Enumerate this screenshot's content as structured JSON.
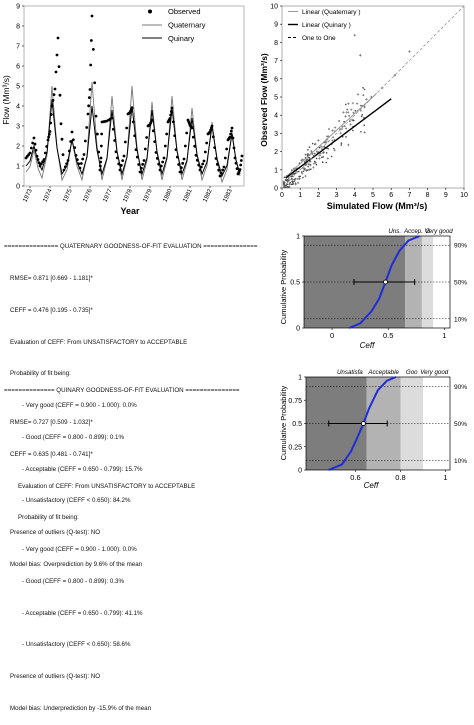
{
  "colors": {
    "observed": "#000000",
    "quaternary": "#777777",
    "quinary": "#000000",
    "cdf_curve": "#1f2dd8",
    "zone_dark": "#7d7d7d",
    "zone_mid": "#b3b3b3",
    "zone_light": "#dcdcdc",
    "zone_white": "#ffffff"
  },
  "chart_data": [
    {
      "type": "line",
      "id": "timeseries",
      "xlabel": "Year",
      "ylabel": "Flow (Mm³/s)",
      "xlim": [
        1972.7,
        1983.7
      ],
      "ylim": [
        0,
        9
      ],
      "x_ticks": [
        "1973",
        "1974",
        "1975",
        "1976",
        "1977",
        "1978",
        "1979",
        "1980",
        "1981",
        "1982",
        "1983"
      ],
      "y_ticks": [
        "0",
        "1",
        "2",
        "3",
        "4",
        "5",
        "6",
        "7",
        "8",
        "9"
      ],
      "legend_position": "top-right",
      "series": [
        {
          "name": "Observed",
          "style": "points",
          "peaks": [
            [
              1973.2,
              2.4
            ],
            [
              1973.9,
              2.3
            ],
            [
              1974.1,
              4.0
            ],
            [
              1974.4,
              7.4
            ],
            [
              1975.1,
              2.7
            ],
            [
              1975.9,
              3.6
            ],
            [
              1976.1,
              8.5
            ],
            [
              1976.6,
              3.2
            ],
            [
              1977.1,
              3.4
            ],
            [
              1977.9,
              3.6
            ],
            [
              1978.1,
              3.9
            ],
            [
              1978.9,
              3.0
            ],
            [
              1979.1,
              3.3
            ],
            [
              1979.9,
              3.2
            ],
            [
              1980.1,
              3.9
            ],
            [
              1980.9,
              3.3
            ],
            [
              1981.1,
              2.9
            ],
            [
              1981.9,
              2.6
            ],
            [
              1982.1,
              3.0
            ],
            [
              1982.9,
              2.3
            ],
            [
              1983.1,
              2.9
            ],
            [
              1983.6,
              1.5
            ]
          ],
          "troughs": [
            [
              1972.8,
              1.4
            ],
            [
              1973.5,
              1.0
            ],
            [
              1974.7,
              0.8
            ],
            [
              1975.5,
              0.9
            ],
            [
              1976.5,
              0.8
            ],
            [
              1977.5,
              0.8
            ],
            [
              1978.5,
              0.7
            ],
            [
              1979.5,
              0.8
            ],
            [
              1980.5,
              0.7
            ],
            [
              1981.5,
              0.8
            ],
            [
              1982.5,
              0.5
            ],
            [
              1983.4,
              0.6
            ]
          ]
        },
        {
          "name": "Quaternary",
          "style": "line",
          "peaks": [
            [
              1973.2,
              1.8
            ],
            [
              1974.1,
              5.0
            ],
            [
              1975.1,
              2.3
            ],
            [
              1976.1,
              5.2
            ],
            [
              1977.1,
              4.5
            ],
            [
              1978.1,
              5.0
            ],
            [
              1979.1,
              4.2
            ],
            [
              1980.1,
              4.5
            ],
            [
              1981.1,
              3.9
            ],
            [
              1982.1,
              3.2
            ],
            [
              1983.1,
              2.7
            ]
          ],
          "troughs": [
            [
              1972.8,
              0.7
            ],
            [
              1973.6,
              0.4
            ],
            [
              1974.6,
              0.3
            ],
            [
              1975.6,
              0.3
            ],
            [
              1976.6,
              0.3
            ],
            [
              1977.6,
              0.3
            ],
            [
              1978.6,
              0.3
            ],
            [
              1979.6,
              0.3
            ],
            [
              1980.6,
              0.3
            ],
            [
              1981.6,
              0.3
            ],
            [
              1982.6,
              0.2
            ],
            [
              1983.5,
              0.5
            ]
          ]
        },
        {
          "name": "Quinary",
          "style": "line",
          "peaks": [
            [
              1973.2,
              2.0
            ],
            [
              1974.1,
              4.3
            ],
            [
              1975.1,
              2.3
            ],
            [
              1976.1,
              4.0
            ],
            [
              1977.1,
              3.8
            ],
            [
              1978.1,
              4.0
            ],
            [
              1979.1,
              3.8
            ],
            [
              1980.1,
              3.9
            ],
            [
              1981.1,
              3.4
            ],
            [
              1982.1,
              3.0
            ],
            [
              1983.1,
              2.6
            ]
          ],
          "troughs": [
            [
              1972.8,
              1.0
            ],
            [
              1973.6,
              0.8
            ],
            [
              1974.6,
              0.6
            ],
            [
              1975.6,
              0.6
            ],
            [
              1976.6,
              0.6
            ],
            [
              1977.6,
              0.6
            ],
            [
              1978.6,
              0.6
            ],
            [
              1979.6,
              0.6
            ],
            [
              1980.6,
              0.6
            ],
            [
              1981.6,
              0.6
            ],
            [
              1982.6,
              0.5
            ],
            [
              1983.5,
              0.6
            ]
          ]
        }
      ]
    },
    {
      "type": "scatter",
      "id": "scatter",
      "xlabel": "Simulated Flow (Mm³/s)",
      "ylabel": "Observed Flow (Mm³/s)",
      "xlim": [
        0,
        10
      ],
      "ylim": [
        0,
        10
      ],
      "x_ticks": [
        "0",
        "1",
        "2",
        "3",
        "4",
        "5",
        "6",
        "7",
        "8",
        "9",
        "10"
      ],
      "y_ticks": [
        "0",
        "1",
        "2",
        "3",
        "4",
        "5",
        "6",
        "7",
        "8",
        "9",
        "10"
      ],
      "legend_position": "top-left",
      "series": [
        {
          "name": "Linear (Quaternary )",
          "style": "line",
          "points": [
            [
              0.2,
              0.6
            ],
            [
              5.2,
              5.2
            ]
          ]
        },
        {
          "name": "Linear (Quinary )",
          "style": "line",
          "points": [
            [
              0.2,
              0.55
            ],
            [
              6.0,
              4.9
            ]
          ]
        },
        {
          "name": "One to One",
          "style": "dashed",
          "points": [
            [
              0,
              0
            ],
            [
              10,
              10
            ]
          ]
        }
      ],
      "outliers": [
        [
          4.0,
          8.4
        ],
        [
          4.3,
          7.3
        ],
        [
          7.0,
          7.5
        ],
        [
          6.2,
          6.2
        ],
        [
          5.5,
          5.5
        ],
        [
          4.9,
          5.0
        ],
        [
          4.5,
          4.5
        ],
        [
          3.3,
          3.4
        ]
      ]
    },
    {
      "type": "line",
      "id": "cdf_quaternary",
      "xlabel": "Ceff",
      "ylabel": "Cumulative Probability",
      "xlim": [
        -0.25,
        1.05
      ],
      "ylim": [
        0,
        1
      ],
      "x_ticks": [
        "0",
        "0.5",
        "1"
      ],
      "y_ticks": [
        "0",
        "0.5",
        "1"
      ],
      "zones": [
        {
          "to": 0.65,
          "label": "Uns."
        },
        {
          "to": 0.8,
          "label": "Accep."
        },
        {
          "to": 0.9,
          "label": "G"
        },
        {
          "to": 1.0,
          "label": "Very good"
        }
      ],
      "percent_labels": [
        "90%",
        "50%",
        "10%"
      ],
      "ceff": 0.476,
      "ci": [
        0.195,
        0.735
      ],
      "curve": [
        [
          0.15,
          0
        ],
        [
          0.25,
          0.05
        ],
        [
          0.35,
          0.18
        ],
        [
          0.42,
          0.32
        ],
        [
          0.476,
          0.5
        ],
        [
          0.53,
          0.68
        ],
        [
          0.6,
          0.84
        ],
        [
          0.68,
          0.95
        ],
        [
          0.78,
          1.0
        ]
      ]
    },
    {
      "type": "line",
      "id": "cdf_quinary",
      "xlabel": "Ceff",
      "ylabel": "Cumulative Probability",
      "xlim": [
        0.38,
        1.02
      ],
      "ylim": [
        0,
        1
      ],
      "x_ticks": [
        "0.6",
        "0.8",
        "1"
      ],
      "y_ticks": [
        "0",
        "0.25",
        "0.5",
        "0.75",
        "1"
      ],
      "zones": [
        {
          "to": 0.65,
          "label": "Unsatisfa"
        },
        {
          "to": 0.8,
          "label": "Acceptable"
        },
        {
          "to": 0.9,
          "label": "Goo"
        },
        {
          "to": 1.0,
          "label": "Very good"
        }
      ],
      "percent_labels": [
        "90%",
        "50%",
        "10%"
      ],
      "ceff": 0.635,
      "ci": [
        0.481,
        0.741
      ],
      "curve": [
        [
          0.48,
          0
        ],
        [
          0.54,
          0.06
        ],
        [
          0.58,
          0.2
        ],
        [
          0.61,
          0.36
        ],
        [
          0.635,
          0.5
        ],
        [
          0.66,
          0.66
        ],
        [
          0.7,
          0.86
        ],
        [
          0.74,
          0.96
        ],
        [
          0.78,
          1.0
        ]
      ]
    }
  ],
  "report_quaternary": {
    "header": "=============== QUATERNARY GOODNESS-OF-FIT EVALUATION ===============",
    "rmse": "RMSE= 0.871 [0.669 - 1.181]*",
    "ceff": "CEFF = 0.476 [0.195 - 0.735]*",
    "evaluation": "Evaluation of CEFF: From UNSATISFACTORY to ACCEPTABLE",
    "prob_title": "Probability of fit being:",
    "very_good": "- Very good (CEFF = 0.900 - 1.000): 0.0%",
    "good": "- Good (CEFF = 0.800 - 0.899): 0.1%",
    "acceptable": "- Acceptable (CEFF = 0.650 - 0.799): 15.7%",
    "unsatisfactory": "- Unsatisfactory (CEFF < 0.650): 84.2%",
    "outliers": "Presence of outliers (Q-test): NO",
    "bias": "Model bias: Overprediction by 9.6% of the mean"
  },
  "report_quinary": {
    "header": "============== QUINARY GOODNESS-OF-FIT EVALUATION ===============",
    "rmse": "RMSE= 0.727 [0.509 - 1.032]*",
    "ceff": "CEFF = 0.635 [0.481 - 0.741]*",
    "evaluation": "Evaluation of CEFF: From UNSATISFACTORY to ACCEPTABLE",
    "prob_title": "Probability of fit being:",
    "very_good": "- Very good (CEFF = 0.900 - 1.000): 0.0%",
    "good": "- Good (CEFF = 0.800 - 0.899): 0.3%",
    "acceptable": "- Acceptable (CEFF = 0.650 - 0.799): 41.1%",
    "unsatisfactory": "- Unsatisfactory (CEFF < 0.650): 58.6%",
    "outliers": "Presence of outliers (Q-test): NO",
    "bias": "Model bias: Underprediction by -15.9% of the mean"
  }
}
